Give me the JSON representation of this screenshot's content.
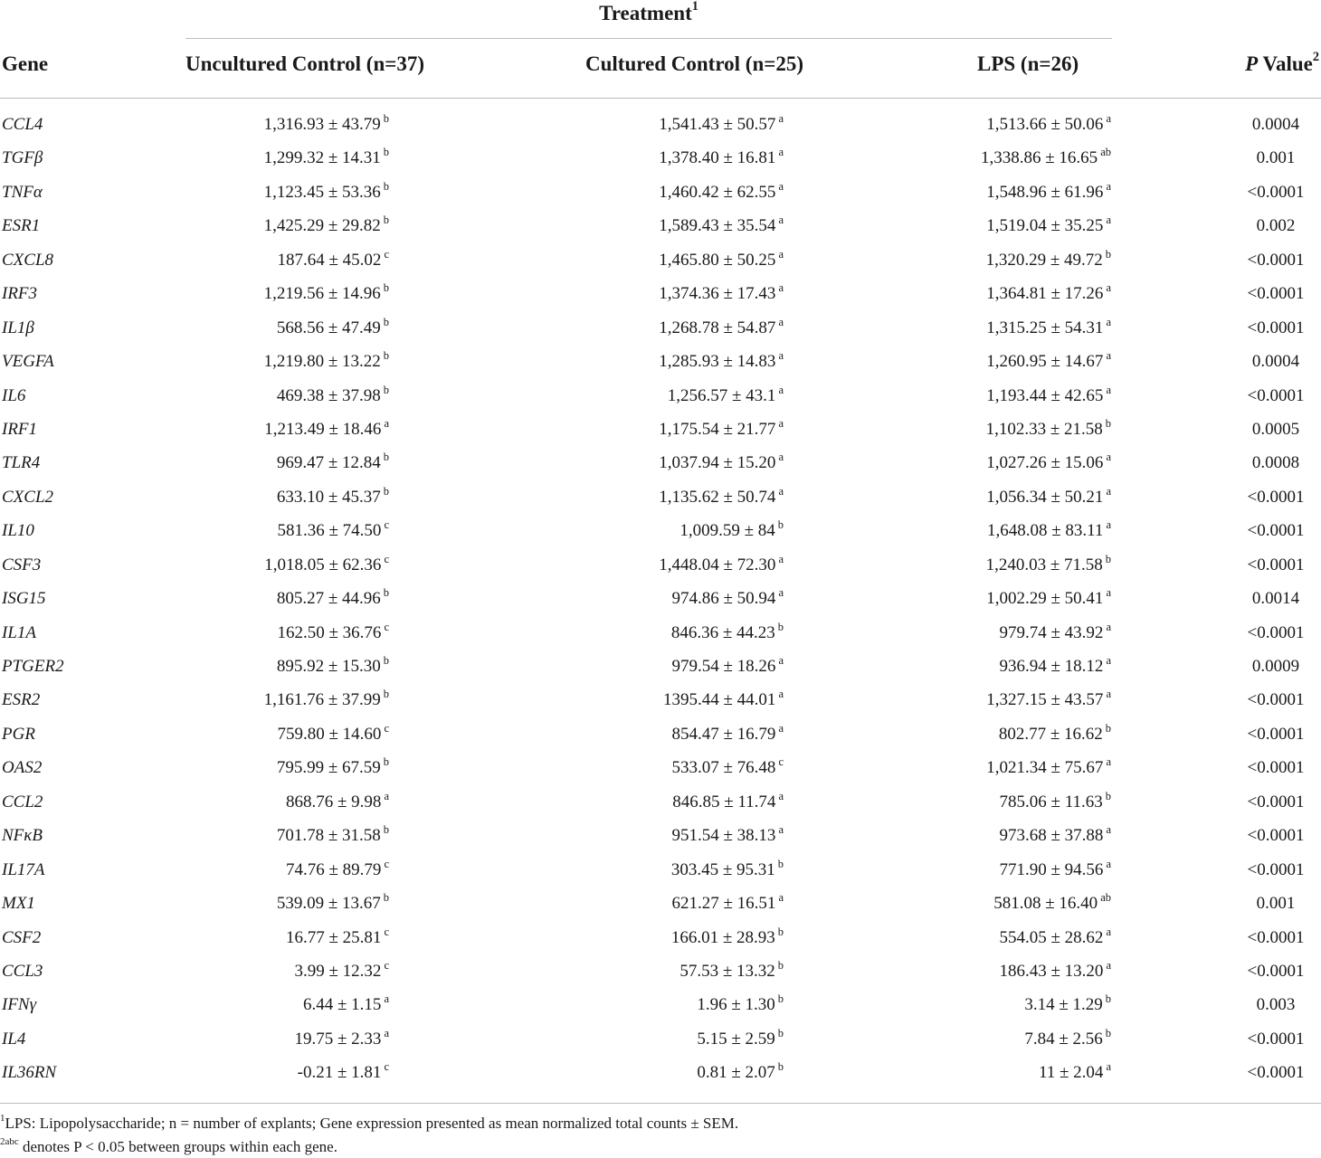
{
  "header": {
    "treatment": "Treatment",
    "treatment_sup": "1",
    "gene": "Gene",
    "uncultured": "Uncultured Control (n=37)",
    "cultured": "Cultured Control (n=25)",
    "lps": "LPS (n=26)",
    "p_italic": "P",
    "p_rest": " Value",
    "p_sup": "2"
  },
  "rows": [
    {
      "gene": "CCL4",
      "uc": "1,316.93 ± 43.79",
      "uc_s": "b",
      "cc": "1,541.43 ± 50.57",
      "cc_s": "a",
      "lps": "1,513.66 ± 50.06",
      "lps_s": "a",
      "p": "0.0004"
    },
    {
      "gene": "TGFβ",
      "uc": "1,299.32 ± 14.31",
      "uc_s": "b",
      "cc": "1,378.40 ± 16.81",
      "cc_s": "a",
      "lps": "1,338.86 ± 16.65",
      "lps_s": "ab",
      "p": "0.001"
    },
    {
      "gene": "TNFα",
      "uc": "1,123.45 ± 53.36",
      "uc_s": "b",
      "cc": "1,460.42 ± 62.55",
      "cc_s": "a",
      "lps": "1,548.96 ± 61.96",
      "lps_s": "a",
      "p": "<0.0001"
    },
    {
      "gene": "ESR1",
      "uc": "1,425.29 ± 29.82",
      "uc_s": "b",
      "cc": "1,589.43 ± 35.54",
      "cc_s": "a",
      "lps": "1,519.04 ± 35.25",
      "lps_s": "a",
      "p": "0.002"
    },
    {
      "gene": "CXCL8",
      "uc": "187.64 ± 45.02",
      "uc_s": "c",
      "cc": "1,465.80 ± 50.25",
      "cc_s": "a",
      "lps": "1,320.29 ± 49.72",
      "lps_s": "b",
      "p": "<0.0001"
    },
    {
      "gene": "IRF3",
      "uc": "1,219.56 ± 14.96",
      "uc_s": "b",
      "cc": "1,374.36 ± 17.43",
      "cc_s": "a",
      "lps": "1,364.81 ± 17.26",
      "lps_s": "a",
      "p": "<0.0001"
    },
    {
      "gene": "IL1β",
      "uc": "568.56 ± 47.49",
      "uc_s": "b",
      "cc": "1,268.78 ± 54.87",
      "cc_s": "a",
      "lps": "1,315.25 ± 54.31",
      "lps_s": "a",
      "p": "<0.0001"
    },
    {
      "gene": "VEGFA",
      "uc": "1,219.80 ± 13.22",
      "uc_s": "b",
      "cc": "1,285.93 ± 14.83",
      "cc_s": "a",
      "lps": "1,260.95 ± 14.67",
      "lps_s": "a",
      "p": "0.0004"
    },
    {
      "gene": "IL6",
      "uc": "469.38 ± 37.98",
      "uc_s": "b",
      "cc": "1,256.57 ± 43.1",
      "cc_s": "a",
      "lps": "1,193.44 ± 42.65",
      "lps_s": "a",
      "p": "<0.0001"
    },
    {
      "gene": "IRF1",
      "uc": "1,213.49 ± 18.46",
      "uc_s": "a",
      "cc": "1,175.54 ± 21.77",
      "cc_s": "a",
      "lps": "1,102.33 ± 21.58",
      "lps_s": "b",
      "p": "0.0005"
    },
    {
      "gene": "TLR4",
      "uc": "969.47 ± 12.84",
      "uc_s": "b",
      "cc": "1,037.94 ± 15.20",
      "cc_s": "a",
      "lps": "1,027.26 ± 15.06",
      "lps_s": "a",
      "p": "0.0008"
    },
    {
      "gene": "CXCL2",
      "uc": "633.10 ± 45.37",
      "uc_s": "b",
      "cc": "1,135.62 ± 50.74",
      "cc_s": "a",
      "lps": "1,056.34 ± 50.21",
      "lps_s": "a",
      "p": "<0.0001"
    },
    {
      "gene": "IL10",
      "uc": "581.36 ± 74.50",
      "uc_s": "c",
      "cc": "1,009.59 ± 84",
      "cc_s": "b",
      "lps": "1,648.08 ± 83.11",
      "lps_s": "a",
      "p": "<0.0001"
    },
    {
      "gene": "CSF3",
      "uc": "1,018.05 ± 62.36",
      "uc_s": "c",
      "cc": "1,448.04 ± 72.30",
      "cc_s": "a",
      "lps": "1,240.03 ± 71.58",
      "lps_s": "b",
      "p": "<0.0001"
    },
    {
      "gene": "ISG15",
      "uc": "805.27 ± 44.96",
      "uc_s": "b",
      "cc": "974.86 ± 50.94",
      "cc_s": "a",
      "lps": "1,002.29 ± 50.41",
      "lps_s": "a",
      "p": "0.0014"
    },
    {
      "gene": "IL1A",
      "uc": "162.50 ± 36.76",
      "uc_s": "c",
      "cc": "846.36 ± 44.23",
      "cc_s": "b",
      "lps": "979.74 ± 43.92",
      "lps_s": "a",
      "p": "<0.0001"
    },
    {
      "gene": "PTGER2",
      "uc": "895.92 ± 15.30",
      "uc_s": "b",
      "cc": "979.54 ± 18.26",
      "cc_s": "a",
      "lps": "936.94 ± 18.12",
      "lps_s": "a",
      "p": "0.0009"
    },
    {
      "gene": "ESR2",
      "uc": "1,161.76 ± 37.99",
      "uc_s": "b",
      "cc": "1395.44 ± 44.01",
      "cc_s": "a",
      "lps": "1,327.15 ± 43.57",
      "lps_s": "a",
      "p": "<0.0001"
    },
    {
      "gene": "PGR",
      "uc": "759.80 ± 14.60",
      "uc_s": "c",
      "cc": "854.47 ± 16.79",
      "cc_s": "a",
      "lps": "802.77 ± 16.62",
      "lps_s": "b",
      "p": "<0.0001"
    },
    {
      "gene": "OAS2",
      "uc": "795.99 ± 67.59",
      "uc_s": "b",
      "cc": "533.07 ± 76.48",
      "cc_s": "c",
      "lps": "1,021.34 ± 75.67",
      "lps_s": "a",
      "p": "<0.0001"
    },
    {
      "gene": "CCL2",
      "uc": "868.76 ± 9.98",
      "uc_s": "a",
      "cc": "846.85 ± 11.74",
      "cc_s": "a",
      "lps": "785.06 ± 11.63",
      "lps_s": "b",
      "p": "<0.0001"
    },
    {
      "gene": "NFκB",
      "uc": "701.78 ± 31.58",
      "uc_s": "b",
      "cc": "951.54 ± 38.13",
      "cc_s": "a",
      "lps": "973.68 ± 37.88",
      "lps_s": "a",
      "p": "<0.0001"
    },
    {
      "gene": "IL17A",
      "uc": "74.76 ± 89.79",
      "uc_s": "c",
      "cc": "303.45 ± 95.31",
      "cc_s": "b",
      "lps": "771.90 ± 94.56",
      "lps_s": "a",
      "p": "<0.0001"
    },
    {
      "gene": "MX1",
      "uc": "539.09 ± 13.67",
      "uc_s": "b",
      "cc": "621.27 ± 16.51",
      "cc_s": "a",
      "lps": "581.08 ± 16.40",
      "lps_s": "ab",
      "p": "0.001"
    },
    {
      "gene": "CSF2",
      "uc": "16.77 ± 25.81",
      "uc_s": "c",
      "cc": "166.01 ± 28.93",
      "cc_s": "b",
      "lps": "554.05 ± 28.62",
      "lps_s": "a",
      "p": "<0.0001"
    },
    {
      "gene": "CCL3",
      "uc": "3.99 ± 12.32",
      "uc_s": "c",
      "cc": "57.53 ± 13.32",
      "cc_s": "b",
      "lps": "186.43 ± 13.20",
      "lps_s": "a",
      "p": "<0.0001"
    },
    {
      "gene": "IFNγ",
      "uc": "6.44 ± 1.15",
      "uc_s": "a",
      "cc": "1.96 ± 1.30",
      "cc_s": "b",
      "lps": "3.14 ± 1.29",
      "lps_s": "b",
      "p": "0.003"
    },
    {
      "gene": "IL4",
      "uc": "19.75 ± 2.33",
      "uc_s": "a",
      "cc": "5.15 ± 2.59",
      "cc_s": "b",
      "lps": "7.84 ± 2.56",
      "lps_s": "b",
      "p": "<0.0001"
    },
    {
      "gene": "IL36RN",
      "uc": "-0.21 ± 1.81",
      "uc_s": "c",
      "cc": "0.81 ± 2.07",
      "cc_s": "b",
      "lps": "11 ± 2.04",
      "lps_s": "a",
      "p": "<0.0001"
    }
  ],
  "footnotes": {
    "fn1_sup": "1",
    "fn1_text": "LPS: Lipopolysaccharide; n = number of explants; Gene expression presented as mean normalized total counts ± SEM.",
    "fn2_sup": "2abc",
    "fn2_text": " denotes P < 0.05 between groups within each gene."
  }
}
